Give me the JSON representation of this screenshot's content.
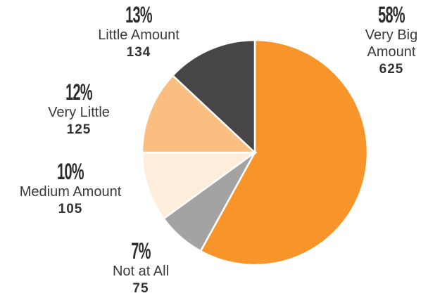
{
  "chart_data": {
    "type": "pie",
    "categories": [
      "Very Big Amount",
      "Not at All",
      "Medium Amount",
      "Very Little",
      "Little Amount"
    ],
    "values": [
      58,
      7,
      10,
      12,
      13
    ],
    "value_labels": [
      "58%",
      "7%",
      "10%",
      "12%",
      "13%"
    ],
    "counts": [
      625,
      75,
      105,
      125,
      134
    ],
    "colors": [
      "#f7952a",
      "#a3a3a3",
      "#fdedda",
      "#f9be80",
      "#474546"
    ]
  }
}
